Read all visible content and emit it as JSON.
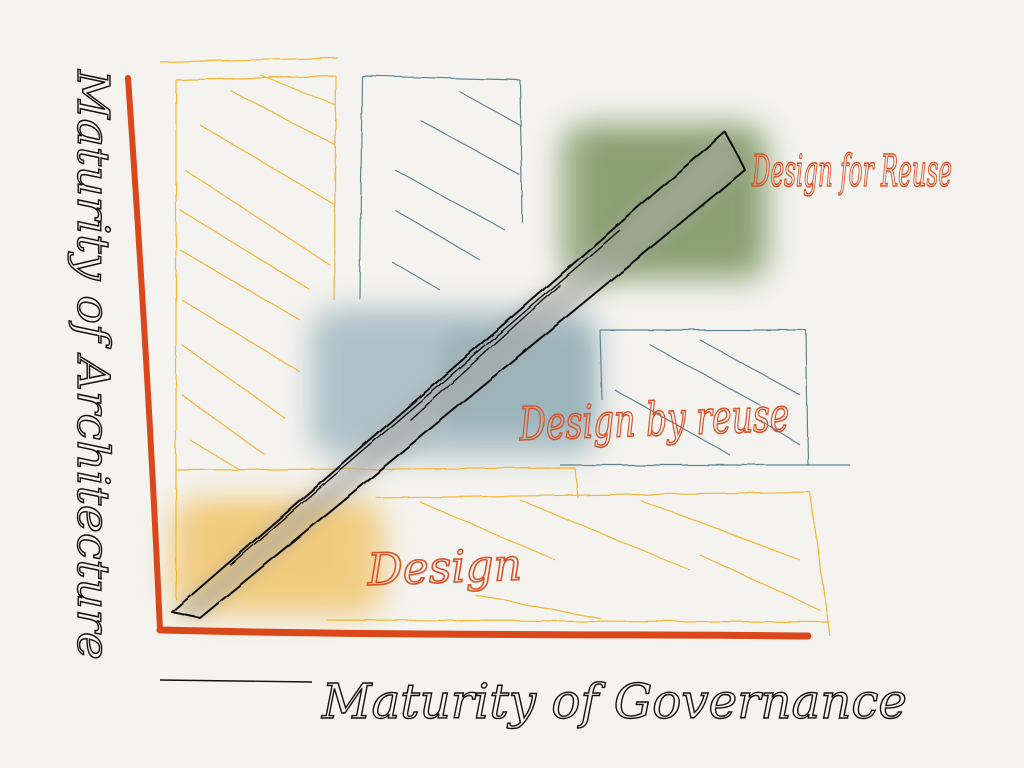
{
  "axes": {
    "y_label": "Maturity of Architecture",
    "x_label": "Maturity of Governance"
  },
  "stages": [
    {
      "label": "Design",
      "color": "#f0c265"
    },
    {
      "label": "Design by reuse",
      "color": "#9fb7bf"
    },
    {
      "label": "Design for Reuse",
      "color": "#8aa272"
    }
  ],
  "colors": {
    "axis": "#d9471a",
    "hatch_yellow": "#f2b735",
    "hatch_teal": "#5f8590",
    "arrow_fill": "#a9a7a3",
    "ink": "#111111",
    "paper": "#f4f3ef"
  }
}
